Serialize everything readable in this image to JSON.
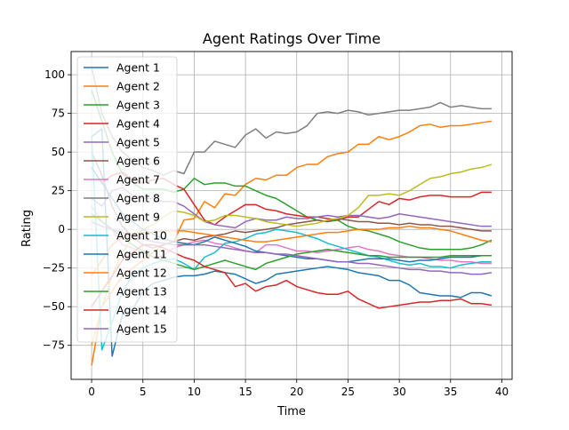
{
  "chart_data": {
    "type": "line",
    "title": "Agent Ratings Over Time",
    "xlabel": "Time",
    "ylabel": "Rating",
    "xlim": [
      -2,
      41
    ],
    "ylim": [
      -97,
      115
    ],
    "xticks": [
      0,
      5,
      10,
      15,
      20,
      25,
      30,
      35,
      40
    ],
    "yticks": [
      -75,
      -50,
      -25,
      0,
      25,
      50,
      75,
      100
    ],
    "grid": true,
    "legend": "upper-left",
    "series": [
      {
        "name": "Agent 1",
        "color": "#1f77b4",
        "values": [
          60,
          65,
          -82,
          -55,
          -52,
          -40,
          -35,
          -33,
          -31,
          -30,
          -30,
          -29,
          -27,
          -28,
          -29,
          -32,
          -35,
          -33,
          -29,
          -28,
          -27,
          -26,
          -25,
          -24,
          -25,
          -26,
          -28,
          -29,
          -30,
          -33,
          -33,
          -36,
          -41,
          -42,
          -43,
          -43,
          -44,
          -41,
          -41,
          -43
        ]
      },
      {
        "name": "Agent 2",
        "color": "#ff7f0e",
        "values": [
          -88,
          -50,
          -40,
          -30,
          -25,
          -20,
          -15,
          -10,
          -8,
          6,
          7,
          18,
          14,
          23,
          22,
          29,
          33,
          32,
          35,
          35,
          40,
          42,
          42,
          47,
          49,
          50,
          55,
          55,
          60,
          58,
          60,
          63,
          67,
          68,
          66,
          67,
          67,
          68,
          69,
          70
        ]
      },
      {
        "name": "Agent 3",
        "color": "#2ca02c",
        "values": [
          90,
          70,
          50,
          36,
          30,
          26,
          26,
          26,
          24,
          26,
          33,
          29,
          30,
          30,
          28,
          28,
          25,
          22,
          20,
          16,
          12,
          8,
          6,
          5,
          6,
          2,
          0,
          -1,
          -3,
          -5,
          -8,
          -10,
          -12,
          -13,
          -13,
          -13,
          -13,
          -12,
          -10,
          -7
        ]
      },
      {
        "name": "Agent 4",
        "color": "#d62728",
        "values": [
          40,
          30,
          35,
          37,
          32,
          30,
          32,
          33,
          29,
          26,
          16,
          6,
          3,
          8,
          12,
          16,
          16,
          13,
          12,
          10,
          9,
          8,
          8,
          7,
          6,
          8,
          8,
          13,
          18,
          16,
          20,
          19,
          21,
          22,
          22,
          21,
          21,
          21,
          24,
          24
        ]
      },
      {
        "name": "Agent 5",
        "color": "#9467bd",
        "values": [
          20,
          15,
          25,
          27,
          22,
          20,
          20,
          18,
          18,
          15,
          10,
          5,
          3,
          2,
          1,
          5,
          7,
          6,
          6,
          8,
          7,
          7,
          8,
          9,
          8,
          9,
          9,
          8,
          7,
          8,
          10,
          9,
          8,
          7,
          6,
          5,
          4,
          3,
          2,
          2
        ]
      },
      {
        "name": "Agent 6",
        "color": "#8c564b",
        "values": [
          50,
          35,
          15,
          2,
          -5,
          -10,
          -12,
          -10,
          -8,
          -6,
          -7,
          -5,
          -4,
          -3,
          -1,
          -2,
          -1,
          0,
          1,
          3,
          4,
          5,
          6,
          5,
          7,
          6,
          5,
          5,
          4,
          4,
          3,
          4,
          3,
          3,
          2,
          2,
          1,
          0,
          -1,
          -1
        ]
      },
      {
        "name": "Agent 7",
        "color": "#e377c2",
        "values": [
          15,
          5,
          0,
          -10,
          -12,
          -15,
          -18,
          -17,
          -12,
          -10,
          -8,
          -7,
          -9,
          -10,
          -12,
          -14,
          -15,
          -10,
          -10,
          -12,
          -14,
          -14,
          -15,
          -14,
          -13,
          -12,
          -11,
          -13,
          -14,
          -16,
          -17,
          -18,
          -18,
          -19,
          -20,
          -20,
          -21,
          -21,
          -22,
          -22
        ]
      },
      {
        "name": "Agent 8",
        "color": "#7f7f7f",
        "values": [
          105,
          75,
          60,
          50,
          45,
          40,
          38,
          35,
          38,
          36,
          50,
          50,
          57,
          55,
          53,
          61,
          65,
          59,
          63,
          62,
          63,
          67,
          75,
          76,
          75,
          77,
          76,
          74,
          75,
          76,
          77,
          77,
          78,
          79,
          82,
          79,
          80,
          79,
          78,
          78
        ]
      },
      {
        "name": "Agent 9",
        "color": "#bcbd22",
        "values": [
          -75,
          -50,
          -30,
          -15,
          -5,
          0,
          3,
          8,
          12,
          11,
          9,
          5,
          6,
          9,
          9,
          8,
          7,
          5,
          4,
          3,
          2,
          3,
          4,
          6,
          7,
          9,
          14,
          22,
          22,
          23,
          22,
          25,
          29,
          33,
          34,
          36,
          37,
          39,
          40,
          42
        ]
      },
      {
        "name": "Agent 10",
        "color": "#17becf",
        "values": [
          60,
          -78,
          -60,
          -40,
          -30,
          -25,
          -22,
          -20,
          -19,
          -22,
          -26,
          -18,
          -15,
          -9,
          -8,
          -6,
          -3,
          -2,
          0,
          -1,
          -2,
          -4,
          -6,
          -9,
          -11,
          -13,
          -15,
          -17,
          -18,
          -20,
          -22,
          -23,
          -22,
          -24,
          -24,
          -25,
          -23,
          -22,
          -21,
          -21
        ]
      },
      {
        "name": "Agent 11",
        "color": "#1f77b4",
        "values": [
          40,
          30,
          20,
          10,
          5,
          0,
          -3,
          -6,
          -8,
          -9,
          -10,
          -8,
          -5,
          -7,
          -9,
          -11,
          -14,
          -15,
          -16,
          -17,
          -18,
          -19,
          -19,
          -20,
          -21,
          -21,
          -20,
          -19,
          -19,
          -19,
          -20,
          -21,
          -20,
          -20,
          -19,
          -18,
          -18,
          -18,
          -17,
          -17
        ]
      },
      {
        "name": "Agent 12",
        "color": "#ff7f0e",
        "values": [
          -30,
          -20,
          -10,
          -5,
          -3,
          -2,
          -2,
          -1,
          -1,
          -1,
          -2,
          -3,
          -4,
          -5,
          -6,
          -7,
          -8,
          -8,
          -7,
          -6,
          -5,
          -4,
          -3,
          -2,
          -2,
          -1,
          0,
          0,
          0,
          1,
          1,
          2,
          1,
          1,
          0,
          -1,
          -3,
          -5,
          -7,
          -8
        ]
      },
      {
        "name": "Agent 13",
        "color": "#2ca02c",
        "values": [
          10,
          5,
          0,
          -5,
          -10,
          -14,
          -18,
          -20,
          -22,
          -24,
          -26,
          -24,
          -22,
          -20,
          -22,
          -24,
          -26,
          -22,
          -20,
          -18,
          -16,
          -15,
          -14,
          -13,
          -14,
          -15,
          -16,
          -17,
          -17,
          -18,
          -18,
          -18,
          -18,
          -18,
          -18,
          -17,
          -17,
          -17,
          -17,
          -17
        ]
      },
      {
        "name": "Agent 14",
        "color": "#d62728",
        "values": [
          -50,
          -40,
          -30,
          -20,
          -15,
          -10,
          -10,
          -12,
          -15,
          -18,
          -20,
          -24,
          -26,
          -28,
          -37,
          -35,
          -40,
          -37,
          -36,
          -33,
          -37,
          -39,
          -41,
          -42,
          -42,
          -40,
          -45,
          -48,
          -51,
          -50,
          -49,
          -48,
          -47,
          -47,
          -46,
          -46,
          -45,
          -48,
          -48,
          -49
        ]
      },
      {
        "name": "Agent 15",
        "color": "#9467bd",
        "values": [
          5,
          2,
          0,
          -2,
          -4,
          -6,
          -8,
          -9,
          -10,
          -10,
          -10,
          -10,
          -11,
          -12,
          -13,
          -14,
          -15,
          -15,
          -16,
          -16,
          -17,
          -18,
          -19,
          -20,
          -21,
          -21,
          -22,
          -22,
          -23,
          -24,
          -25,
          -26,
          -26,
          -27,
          -27,
          -28,
          -28,
          -29,
          -29,
          -28
        ]
      }
    ]
  }
}
